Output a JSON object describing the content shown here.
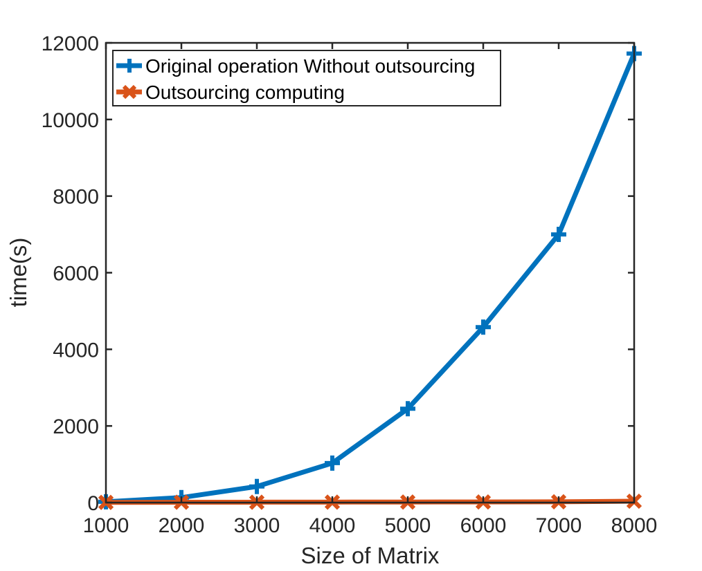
{
  "chart_data": {
    "type": "line",
    "xlabel": "Size of Matrix",
    "ylabel": "time(s)",
    "x": [
      1000,
      2000,
      3000,
      4000,
      5000,
      6000,
      7000,
      8000
    ],
    "xlim": [
      1000,
      8000
    ],
    "ylim": [
      0,
      12000
    ],
    "xticks": [
      "1000",
      "2000",
      "3000",
      "4000",
      "5000",
      "6000",
      "7000",
      "8000"
    ],
    "yticks": [
      "0",
      "2000",
      "4000",
      "6000",
      "8000",
      "10000",
      "12000"
    ],
    "grid": false,
    "legend_position": "top-left",
    "series": [
      {
        "name": "Original operation Without outsourcing",
        "marker": "plus",
        "color": "#0072BD",
        "values": [
          20,
          130,
          420,
          1030,
          2450,
          4580,
          7000,
          11720
        ]
      },
      {
        "name": "Outsourcing computing",
        "marker": "x",
        "color": "#D95319",
        "values": [
          5,
          8,
          10,
          12,
          14,
          16,
          20,
          35
        ]
      }
    ]
  }
}
